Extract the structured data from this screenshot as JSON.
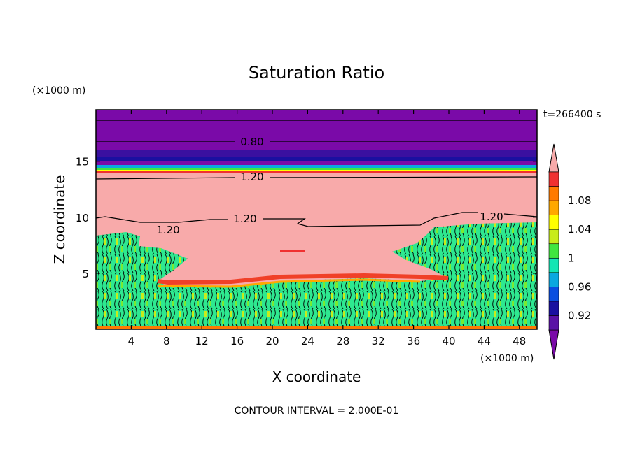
{
  "chart_data": {
    "type": "heatmap",
    "title": "Saturation Ratio",
    "time_label": "t=266400 s",
    "xlabel": "X coordinate",
    "ylabel": "Z coordinate",
    "x_unit": "(×1000 m)",
    "y_unit": "(×1000 m)",
    "xlim": [
      0,
      50
    ],
    "ylim": [
      0,
      19.6
    ],
    "x_ticks": [
      4,
      8,
      12,
      16,
      20,
      24,
      28,
      32,
      36,
      40,
      44,
      48
    ],
    "y_ticks": [
      5,
      10,
      15
    ],
    "contour_interval_text": "CONTOUR INTERVAL = 2.000E-01",
    "contour_labels": [
      "0.80",
      "1.20",
      "1.20",
      "1.20",
      "1.20"
    ],
    "colorbar": {
      "levels": [
        0.92,
        0.96,
        1,
        1.04,
        1.08
      ],
      "colors": [
        "#7a0aa8",
        "#5a12a6",
        "#1a10a0",
        "#0a4ee0",
        "#0aa8e0",
        "#12e6b4",
        "#40e640",
        "#c8ec1a",
        "#ffff00",
        "#ffa800",
        "#ff7a00",
        "#f03030",
        "#f8aaaa"
      ]
    },
    "fields": {
      "upper_dry_layer": {
        "zmin": 15,
        "zmax": 19.6,
        "value": 0.8
      },
      "moist_layer_top": 14.2,
      "supersaturated_region": {
        "value": 1.2
      },
      "lower_turbulent_region": {
        "value_range": [
          0.96,
          1.04
        ]
      }
    }
  }
}
